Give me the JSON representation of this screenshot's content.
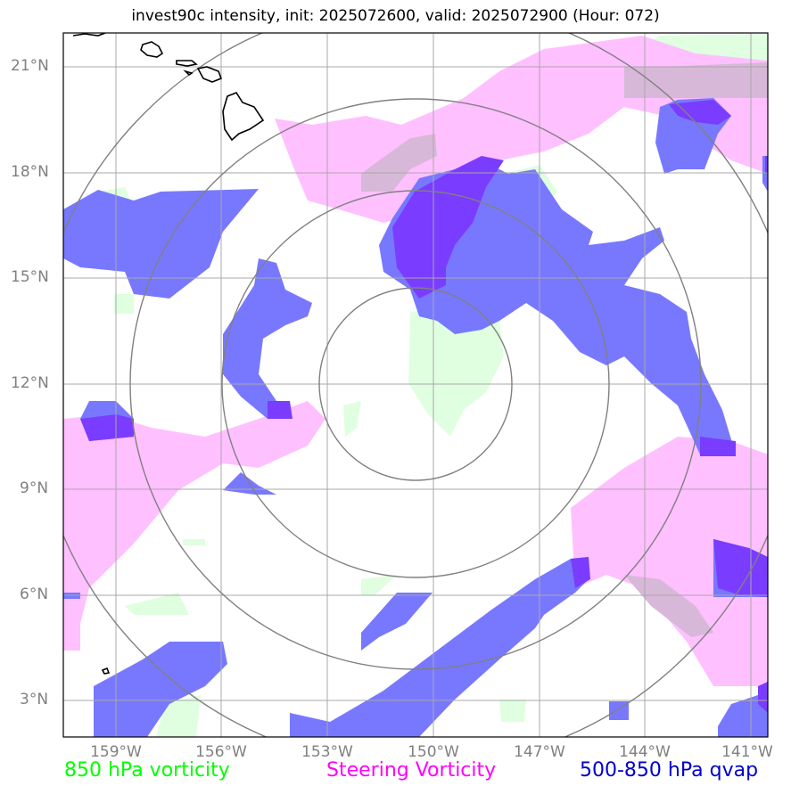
{
  "title": "invest90c intensity, init: 2025072600, valid: 2025072900 (Hour: 072)",
  "legend": {
    "vorticity_850": "850 hPa vorticity",
    "steering_vorticity": "Steering Vorticity",
    "qvap_500_850": "500-850 hPa qvap"
  },
  "colors": {
    "vorticity_850": "#00ff00",
    "steering_vorticity": "#ff00ff",
    "qvap_500_850": "#0000cc",
    "green_fill": "#e0ffe0",
    "pink_fill": "#ffc0ff",
    "blue_fill": "#7878ff",
    "purple_fill": "#7a3cff",
    "range_ring": "#808080",
    "grid": "#b0b0b0"
  },
  "axes": {
    "lat_labels": [
      "21°N",
      "18°N",
      "15°N",
      "12°N",
      "9°N",
      "6°N",
      "3°N"
    ],
    "lon_labels": [
      "159°W",
      "156°W",
      "153°W",
      "150°W",
      "147°W",
      "144°W",
      "141°W"
    ]
  }
}
